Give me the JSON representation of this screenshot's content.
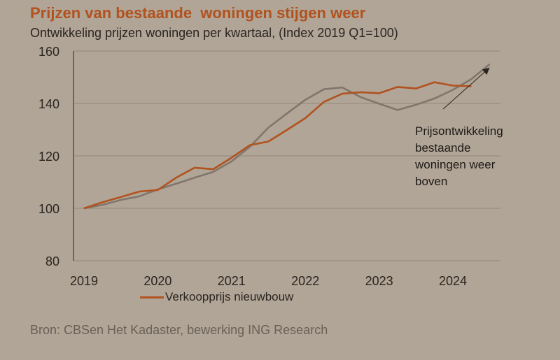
{
  "title": "Prijzen van bestaande  woningen stijgen weer",
  "subtitle": "Ontwikkeling prijzen woningen per kwartaal, (Index 2019 Q1=100)",
  "source": "Bron: CBSen Het Kadaster, bewerking ING Research",
  "colors": {
    "background": "#b1a597",
    "new_build": "#b1521f",
    "existing": "#80766c",
    "grid": "#9e9285"
  },
  "chart_data": {
    "type": "line",
    "title": "Prijzen van bestaande  woningen stijgen weer",
    "xlabel": "",
    "ylabel": "",
    "ylim": [
      80,
      160
    ],
    "yticks": [
      "80",
      "100",
      "120",
      "140",
      "160"
    ],
    "xticks": [
      "2019",
      "2020",
      "2021",
      "2022",
      "2023",
      "2024"
    ],
    "x_start": "2019 Q1",
    "frequency": "quarterly",
    "grid": "horizontal",
    "legend_placement": "bottom",
    "series": [
      {
        "name": "Verkoopprijs nieuwbouw",
        "in_legend": true,
        "values": [
          100,
          102.3,
          104.3,
          106.4,
          107.0,
          111.7,
          115.5,
          114.9,
          119.3,
          124.1,
          125.5,
          129.9,
          134.4,
          140.6,
          143.7,
          144.3,
          143.9,
          146.3,
          145.7,
          148.1,
          146.8,
          146.6
        ]
      },
      {
        "name": "",
        "in_legend": false,
        "values": [
          100,
          101.3,
          103.2,
          104.6,
          107.2,
          109.4,
          111.7,
          113.9,
          117.9,
          123.5,
          130.8,
          136.2,
          141.4,
          145.4,
          146.1,
          142.4,
          139.9,
          137.5,
          139.5,
          141.9,
          145.2,
          149.3,
          155.0
        ]
      }
    ],
    "annotation": {
      "lines": [
        "Prijsontwikkeling",
        "bestaande",
        "woningen weer",
        "boven"
      ]
    }
  }
}
